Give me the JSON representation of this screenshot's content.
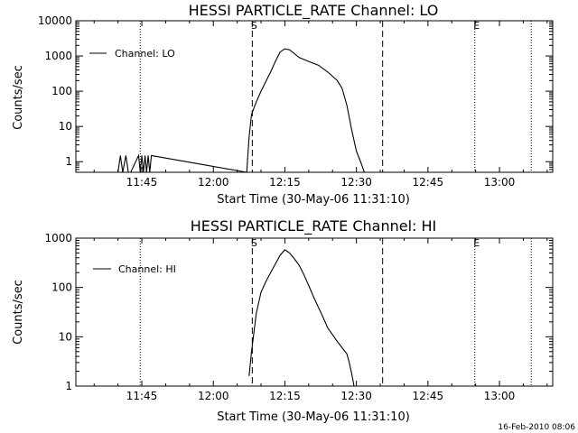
{
  "timestamp": "16-Feb-2010 08:06",
  "chart_data": [
    {
      "type": "line",
      "title": "HESSI PARTICLE_RATE Channel: LO",
      "xlabel": "Start Time (30-May-06 11:31:10)",
      "ylabel": "Counts/sec",
      "yscale": "log",
      "ylim": [
        0.5,
        10000
      ],
      "xlim": [
        "11:31:10",
        "13:11:10"
      ],
      "x_ticks": [
        "11:45",
        "12:00",
        "12:15",
        "12:30",
        "12:45",
        "13:00"
      ],
      "y_ticks": [
        "1",
        "10",
        "100",
        "1000",
        "10000"
      ],
      "legend": "top-left",
      "series": [
        {
          "name": "Channel: LO",
          "x": [
            "11:40:00",
            "11:40:30",
            "11:41:00",
            "11:41:40",
            "11:42:10",
            "11:42:40",
            "11:44:20",
            "11:44:40",
            "11:45:00",
            "11:45:20",
            "11:45:40",
            "11:46:00",
            "11:46:20",
            "11:46:40",
            "11:47:00",
            "12:07:00",
            "12:07:30",
            "12:08:00",
            "12:09:00",
            "12:10:00",
            "12:12:00",
            "12:13:00",
            "12:14:00",
            "12:15:00",
            "12:16:00",
            "12:18:00",
            "12:20:00",
            "12:22:00",
            "12:24:00",
            "12:26:00",
            "12:27:00",
            "12:28:00",
            "12:29:00",
            "12:30:00",
            "12:31:00",
            "12:31:40"
          ],
          "y": [
            0.5,
            1.5,
            0.5,
            1.5,
            0.5,
            0.5,
            1.5,
            0.5,
            1.5,
            0.5,
            1.5,
            0.5,
            1.5,
            0.5,
            1.5,
            0.5,
            5,
            22,
            50,
            100,
            350,
            700,
            1300,
            1600,
            1500,
            900,
            700,
            550,
            350,
            200,
            120,
            40,
            8,
            2,
            0.9,
            0.5
          ]
        }
      ],
      "vlines": [
        {
          "x": "12:08:10",
          "style": "dashed",
          "label": "S"
        },
        {
          "x": "12:35:30",
          "style": "dashed",
          "label": ""
        },
        {
          "x": "11:44:40",
          "style": "dotted",
          "label": ""
        },
        {
          "x": "12:54:50",
          "style": "dotted",
          "label": "E"
        },
        {
          "x": "13:06:40",
          "style": "dotted",
          "label": ""
        }
      ]
    },
    {
      "type": "line",
      "title": "HESSI PARTICLE_RATE Channel: HI",
      "xlabel": "Start Time (30-May-06 11:31:10)",
      "ylabel": "Counts/sec",
      "yscale": "log",
      "ylim": [
        1,
        1000
      ],
      "xlim": [
        "11:31:10",
        "13:11:10"
      ],
      "x_ticks": [
        "11:45",
        "12:00",
        "12:15",
        "12:30",
        "12:45",
        "13:00"
      ],
      "y_ticks": [
        "1",
        "10",
        "100",
        "1000"
      ],
      "legend": "top-left",
      "series": [
        {
          "name": "Channel: HI",
          "x": [
            "12:07:30",
            "12:08:00",
            "12:09:00",
            "12:10:00",
            "12:11:00",
            "12:12:00",
            "12:13:00",
            "12:14:00",
            "12:15:00",
            "12:16:00",
            "12:17:00",
            "12:18:00",
            "12:19:00",
            "12:20:00",
            "12:21:00",
            "12:22:00",
            "12:23:00",
            "12:24:00",
            "12:25:00",
            "12:26:00",
            "12:27:00",
            "12:28:00",
            "12:28:30",
            "12:29:00",
            "12:29:30"
          ],
          "y": [
            1.6,
            5,
            30,
            80,
            130,
            200,
            300,
            450,
            580,
            500,
            380,
            280,
            180,
            110,
            65,
            40,
            25,
            15,
            11,
            8,
            6,
            4.5,
            3,
            1.8,
            1
          ]
        }
      ],
      "vlines": [
        {
          "x": "12:08:10",
          "style": "dashed",
          "label": "S"
        },
        {
          "x": "12:35:30",
          "style": "dashed",
          "label": ""
        },
        {
          "x": "11:44:40",
          "style": "dotted",
          "label": ""
        },
        {
          "x": "12:54:50",
          "style": "dotted",
          "label": "E"
        },
        {
          "x": "13:06:40",
          "style": "dotted",
          "label": ""
        }
      ]
    }
  ]
}
